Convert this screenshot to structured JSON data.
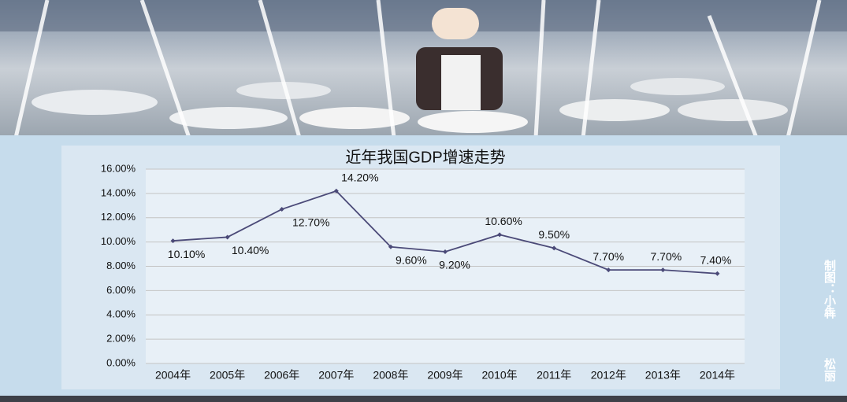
{
  "chart_data": {
    "type": "line",
    "title": "近年我国GDP增速走势",
    "categories": [
      "2004年",
      "2005年",
      "2006年",
      "2007年",
      "2008年",
      "2009年",
      "2010年",
      "2011年",
      "2012年",
      "2013年",
      "2014年"
    ],
    "values": [
      10.1,
      10.4,
      12.7,
      14.2,
      9.6,
      9.2,
      10.6,
      9.5,
      7.7,
      7.7,
      7.4
    ],
    "value_labels": [
      "10.10%",
      "10.40%",
      "12.70%",
      "14.20%",
      "9.60%",
      "9.20%",
      "10.60%",
      "9.50%",
      "7.70%",
      "7.70%",
      "7.40%"
    ],
    "color": "#4b4a78",
    "ylim": [
      0,
      16
    ],
    "yticks": [
      {
        "value": 0,
        "label": "0.00%"
      },
      {
        "value": 2,
        "label": "2.00%"
      },
      {
        "value": 4,
        "label": "4.00%"
      },
      {
        "value": 6,
        "label": "6.00%"
      },
      {
        "value": 8,
        "label": "8.00%"
      },
      {
        "value": 10,
        "label": "10.00%"
      },
      {
        "value": 12,
        "label": "12.00%"
      },
      {
        "value": 14,
        "label": "14.00%"
      },
      {
        "value": 16,
        "label": "16.00%"
      }
    ],
    "grid": true,
    "annotations": [
      "制图：小犇",
      "松丽"
    ]
  }
}
